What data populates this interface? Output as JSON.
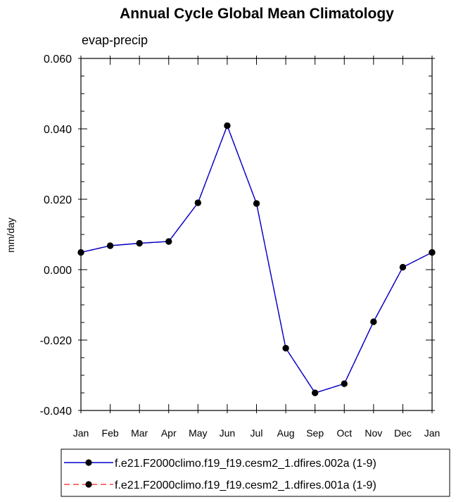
{
  "chart_data": {
    "type": "line",
    "title": "Annual Cycle Global Mean Climatology",
    "subtitle": "evap-precip",
    "xlabel": "",
    "ylabel": "mm/day",
    "categories": [
      "Jan",
      "Feb",
      "Mar",
      "Apr",
      "May",
      "Jun",
      "Jul",
      "Aug",
      "Sep",
      "Oct",
      "Nov",
      "Dec",
      "Jan"
    ],
    "ylim": [
      -0.04,
      0.06
    ],
    "yticks": [
      -0.04,
      -0.02,
      0.0,
      0.02,
      0.04,
      0.06
    ],
    "ytick_labels": [
      "-0.040",
      "-0.020",
      "0.000",
      "0.020",
      "0.040",
      "0.060"
    ],
    "grid": false,
    "legend_position": "bottom",
    "series": [
      {
        "name": "f.e21.F2000climo.f19_f19.cesm2_1.dfires.002a (1-9)",
        "color": "#0000cc",
        "style": "solid",
        "marker": "filled-circle",
        "values": [
          0.0049,
          0.0068,
          0.0075,
          0.008,
          0.019,
          0.0409,
          0.0188,
          -0.0223,
          -0.035,
          -0.0324,
          -0.0148,
          0.0007,
          0.0049
        ]
      },
      {
        "name": "f.e21.F2000climo.f19_f19.cesm2_1.dfires.001a (1-9)",
        "color": "#ff4444",
        "style": "dashed",
        "marker": "filled-circle",
        "values": [
          0.0049,
          0.0068,
          0.0075,
          0.008,
          0.019,
          0.0409,
          0.0188,
          -0.0223,
          -0.035,
          -0.0324,
          -0.0148,
          0.0007,
          0.0049
        ]
      }
    ]
  }
}
